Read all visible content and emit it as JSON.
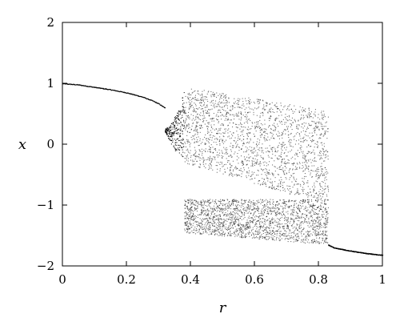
{
  "chart_data": {
    "type": "scatter",
    "title": "",
    "xlabel": "r",
    "ylabel": "x",
    "xlim": [
      0,
      1
    ],
    "ylim": [
      -2,
      2
    ],
    "xticks": [
      0,
      0.2,
      0.4,
      0.6,
      0.8,
      1
    ],
    "xtick_labels": [
      "0",
      "0.2",
      "0.4",
      "0.6",
      "0.8",
      "1"
    ],
    "yticks": [
      -2,
      -1,
      0,
      1,
      2
    ],
    "ytick_labels": [
      "−2",
      "−1",
      "0",
      "1",
      "2"
    ],
    "grid": false,
    "legend": "none",
    "point_color": "#000000",
    "series": [
      {
        "description": "stable branch, r from 0 to 0.32",
        "x": [
          0,
          0.05,
          0.1,
          0.15,
          0.2,
          0.25,
          0.28,
          0.3,
          0.32
        ],
        "y": [
          1.0,
          0.98,
          0.94,
          0.9,
          0.85,
          0.78,
          0.72,
          0.67,
          0.6
        ]
      },
      {
        "description": "period-doubling region near r=0.32-0.38",
        "x": [
          0.32,
          0.33,
          0.34,
          0.35,
          0.36,
          0.37,
          0.38
        ],
        "y_ranges": [
          [
            0.2,
            0.25
          ],
          [
            0.1,
            0.3
          ],
          [
            0.0,
            0.35
          ],
          [
            -0.1,
            0.45
          ],
          [
            -0.15,
            0.55
          ],
          [
            -0.2,
            0.7
          ],
          [
            -0.25,
            0.9
          ]
        ]
      },
      {
        "description": "chaotic upper band, r from 0.38 to 0.83",
        "x_range": [
          0.38,
          0.83
        ],
        "y_range_start": [
          -0.3,
          0.95
        ],
        "y_range_end": [
          -1.0,
          0.55
        ]
      },
      {
        "description": "chaotic lower band, r from 0.38 to 0.83",
        "x_range": [
          0.38,
          0.83
        ],
        "y_range_start": [
          -1.45,
          -0.9
        ],
        "y_range_end": [
          -1.65,
          -0.9
        ]
      },
      {
        "description": "stable branch, r from 0.83 to 1",
        "x": [
          0.83,
          0.85,
          0.9,
          0.95,
          1.0
        ],
        "y": [
          -1.65,
          -1.7,
          -1.75,
          -1.79,
          -1.82
        ]
      }
    ]
  }
}
